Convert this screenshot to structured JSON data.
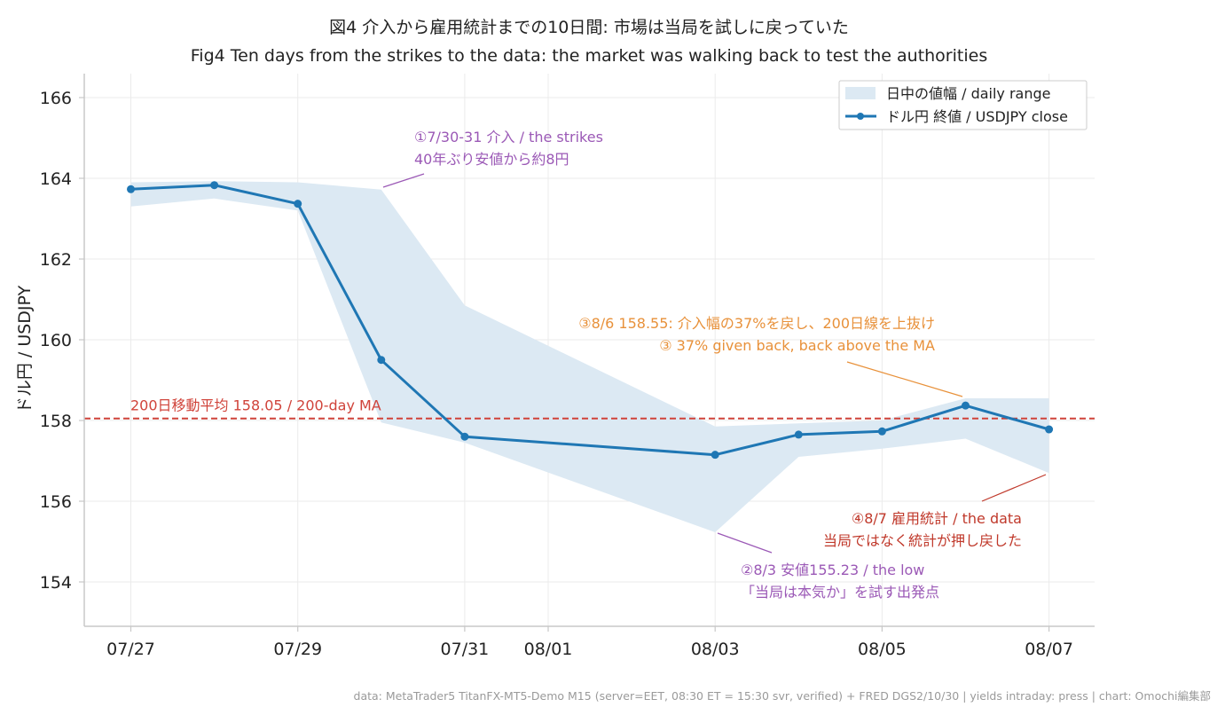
{
  "chart_data": {
    "type": "line",
    "title": "図4 介入から雇用統計までの10日間: 市場は当局を試しに戻っていた",
    "subtitle": "Fig4 Ten days from the strikes to the data: the market was walking back to test the authorities",
    "ylabel": "ドル円 / USDJPY",
    "xlabel": "",
    "ylim": [
      152.9,
      166.6
    ],
    "y_ticks": [
      154,
      156,
      158,
      160,
      162,
      164,
      166
    ],
    "x_ticks": [
      "07/27",
      "07/29",
      "07/31",
      "08/01",
      "08/03",
      "08/05",
      "08/07"
    ],
    "x": [
      "07/27",
      "07/28",
      "07/29",
      "07/30",
      "07/31",
      "08/03",
      "08/04",
      "08/05",
      "08/06",
      "08/07"
    ],
    "x_day_offsets": [
      0,
      1,
      2,
      3,
      4,
      7,
      8,
      9,
      10,
      11
    ],
    "grid": true,
    "legend_position": "top-right",
    "series": [
      {
        "name": "ドル円 終値 / USDJPY close",
        "type": "line",
        "color": "#1f77b4",
        "values": [
          163.73,
          163.83,
          163.37,
          159.5,
          157.6,
          157.15,
          157.65,
          157.73,
          158.37,
          157.78
        ]
      },
      {
        "name": "日中の値幅 / daily range",
        "type": "band",
        "color": "#dce9f3",
        "high": [
          163.9,
          163.93,
          163.9,
          163.72,
          160.85,
          157.85,
          157.93,
          158.0,
          158.55,
          158.55
        ],
        "low": [
          163.3,
          163.5,
          163.2,
          157.95,
          157.45,
          155.23,
          157.1,
          157.3,
          157.55,
          156.7
        ]
      }
    ],
    "reference_line": {
      "label": "200日移動平均 158.05 / 200-day MA",
      "value": 158.05,
      "color": "#d0433a"
    },
    "annotations": [
      {
        "id": "strikes",
        "lines": [
          "①7/30-31 介入 / the strikes",
          "40年ぶり安値から約8円"
        ],
        "color": "#9b59b6",
        "target_x": "07/30",
        "target_y": 163.75
      },
      {
        "id": "low",
        "lines": [
          "②8/3 安値155.23 / the low",
          "「当局は本気か」を試す出発点"
        ],
        "color": "#9b59b6",
        "target_x": "08/03",
        "target_y": 155.23
      },
      {
        "id": "giveback",
        "lines": [
          "③8/6 158.55: 介入幅の37%を戻し、200日線を上抜け",
          "③ 37% given back, back above the MA"
        ],
        "color": "#e8913a",
        "target_x": "08/06",
        "target_y": 158.55
      },
      {
        "id": "data",
        "lines": [
          "④8/7 雇用統計 / the data",
          "当局ではなく統計が押し戻した"
        ],
        "color": "#c0392b",
        "target_x": "08/07",
        "target_y": 156.7
      }
    ],
    "footer": "data: MetaTrader5 TitanFX-MT5-Demo M15 (server=EET, 08:30 ET = 15:30 svr, verified) + FRED DGS2/10/30 | yields intraday: press | chart: Omochi編集部"
  }
}
